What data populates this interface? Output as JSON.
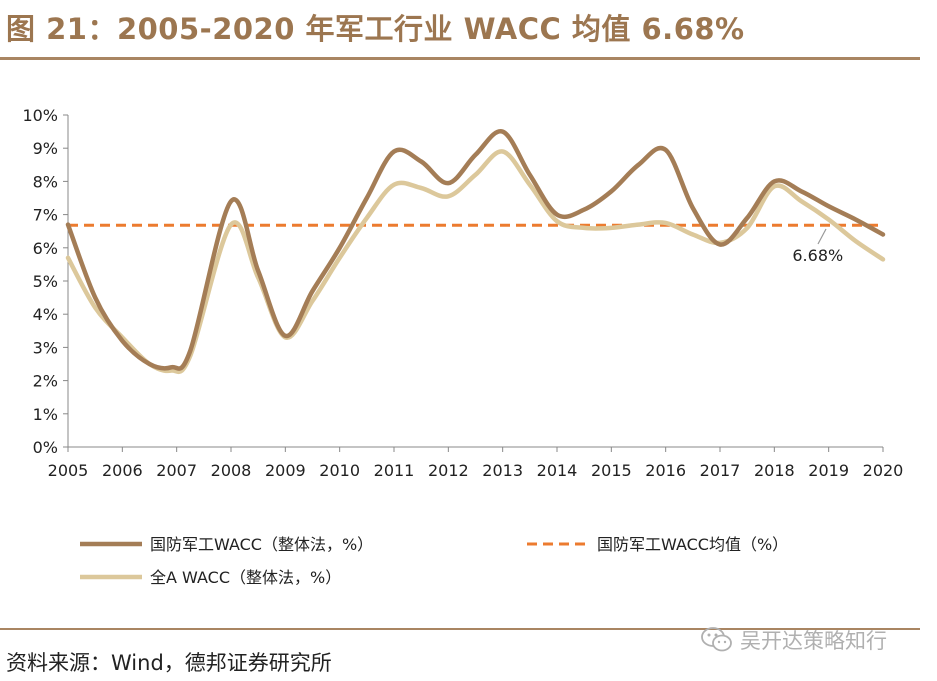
{
  "title": "图 21：2005-2020 年军工行业 WACC 均值 6.68%",
  "source": "资料来源：Wind，德邦证券研究所",
  "watermark": "吴开达策略知行",
  "colors": {
    "title": "#9c7650",
    "defense_series": "#a47d56",
    "all_a_series": "#dcc89b",
    "average_line": "#ec7b2f",
    "axis": "#888888",
    "watermark": "#b0b0b0"
  },
  "chart_data": {
    "type": "line",
    "title": "2005-2020 年军工行业 WACC 均值 6.68%",
    "xlabel": "",
    "ylabel": "",
    "categories": [
      "2005",
      "2006",
      "2007",
      "2008",
      "2009",
      "2010",
      "2011",
      "2012",
      "2013",
      "2014",
      "2015",
      "2016",
      "2017",
      "2018",
      "2019",
      "2020"
    ],
    "y_ticks": [
      "0%",
      "1%",
      "2%",
      "3%",
      "4%",
      "5%",
      "6%",
      "7%",
      "8%",
      "9%",
      "10%"
    ],
    "ylim": [
      0,
      10
    ],
    "legend_position": "bottom",
    "series": [
      {
        "name": "国防军工WACC（整体法，%）",
        "style": "solid",
        "x": [
          2005,
          2005.5,
          2006,
          2006.5,
          2006.9,
          2007.25,
          2008,
          2008.5,
          2009,
          2009.5,
          2010,
          2010.5,
          2011,
          2011.5,
          2012,
          2012.5,
          2013,
          2013.5,
          2014,
          2014.5,
          2015,
          2015.5,
          2016,
          2016.5,
          2017,
          2017.5,
          2018,
          2018.5,
          2019,
          2019.5,
          2020
        ],
        "values": [
          6.7,
          4.5,
          3.2,
          2.5,
          2.4,
          2.9,
          7.4,
          5.3,
          3.35,
          4.7,
          6.0,
          7.5,
          8.9,
          8.6,
          7.95,
          8.8,
          9.5,
          8.2,
          7.0,
          7.15,
          7.7,
          8.5,
          8.95,
          7.2,
          6.1,
          6.9,
          8.0,
          7.7,
          7.25,
          6.85,
          6.4
        ]
      },
      {
        "name": "全A WACC（整体法，%）",
        "style": "solid",
        "x": [
          2005,
          2005.5,
          2006,
          2006.5,
          2006.9,
          2007.25,
          2008,
          2008.5,
          2009,
          2009.5,
          2010,
          2010.5,
          2011,
          2011.5,
          2012,
          2012.5,
          2013,
          2013.5,
          2014,
          2014.5,
          2015,
          2015.5,
          2016,
          2016.5,
          2017,
          2017.5,
          2018,
          2018.5,
          2019,
          2019.5,
          2020
        ],
        "values": [
          5.7,
          4.2,
          3.3,
          2.5,
          2.3,
          2.75,
          6.7,
          5.1,
          3.3,
          4.4,
          5.7,
          6.9,
          7.9,
          7.8,
          7.55,
          8.2,
          8.9,
          7.9,
          6.8,
          6.6,
          6.6,
          6.7,
          6.75,
          6.4,
          6.15,
          6.6,
          7.85,
          7.4,
          6.85,
          6.2,
          5.65
        ]
      },
      {
        "name": "国防军工WACC均值（%）",
        "style": "dashed",
        "x": [
          2005,
          2020
        ],
        "values": [
          6.68,
          6.68
        ]
      }
    ],
    "annotations": [
      {
        "text": "6.68%",
        "x": 2018.8,
        "y": 5.6
      }
    ]
  }
}
